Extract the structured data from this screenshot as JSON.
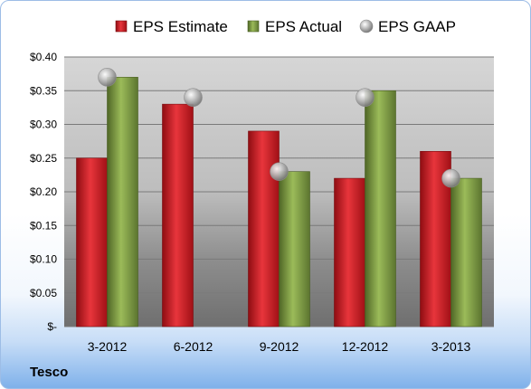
{
  "company": "Tesco",
  "chart_data": {
    "type": "bar",
    "categories": [
      "3-2012",
      "6-2012",
      "9-2012",
      "12-2012",
      "3-2013"
    ],
    "series": [
      {
        "name": "EPS Estimate",
        "values": [
          0.25,
          0.33,
          0.29,
          0.22,
          0.26
        ],
        "color": "#c8161d"
      },
      {
        "name": "EPS Actual",
        "values": [
          0.37,
          null,
          0.23,
          0.35,
          0.22
        ],
        "color": "#77933c"
      }
    ],
    "overlay": {
      "name": "EPS GAAP",
      "type": "scatter",
      "values": [
        0.37,
        0.34,
        0.23,
        0.34,
        0.22
      ],
      "color": "#b0b0b0"
    },
    "y_ticks": [
      {
        "value": 0.4,
        "label": "$0.40"
      },
      {
        "value": 0.35,
        "label": "$0.35"
      },
      {
        "value": 0.3,
        "label": "$0.30"
      },
      {
        "value": 0.25,
        "label": "$0.25"
      },
      {
        "value": 0.2,
        "label": "$0.20"
      },
      {
        "value": 0.15,
        "label": "$0.15"
      },
      {
        "value": 0.1,
        "label": "$0.10"
      },
      {
        "value": 0.05,
        "label": "$0.05"
      },
      {
        "value": 0.0,
        "label": "$-"
      }
    ],
    "ylim": [
      0,
      0.4
    ],
    "grid": true,
    "legend_position": "top",
    "title": "",
    "xlabel": "",
    "ylabel": ""
  }
}
